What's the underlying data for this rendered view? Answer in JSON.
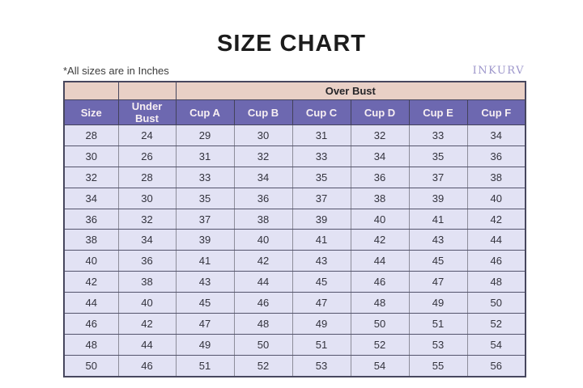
{
  "page": {
    "title": "SIZE CHART",
    "note": "*All sizes are in Inches",
    "brand": "INKURV"
  },
  "chart_data": {
    "type": "table",
    "title": "SIZE CHART",
    "units": "Inches",
    "note": "*All sizes are in Inches",
    "over_bust_label": "Over Bust",
    "columns": [
      "Size",
      "Under Bust",
      "Cup A",
      "Cup B",
      "Cup C",
      "Cup D",
      "Cup E",
      "Cup F"
    ],
    "over_bust_spans_columns": [
      "Cup A",
      "Cup B",
      "Cup C",
      "Cup D",
      "Cup E",
      "Cup F"
    ],
    "rows": [
      [
        28,
        24,
        29,
        30,
        31,
        32,
        33,
        34
      ],
      [
        30,
        26,
        31,
        32,
        33,
        34,
        35,
        36
      ],
      [
        32,
        28,
        33,
        34,
        35,
        36,
        37,
        38
      ],
      [
        34,
        30,
        35,
        36,
        37,
        38,
        39,
        40
      ],
      [
        36,
        32,
        37,
        38,
        39,
        40,
        41,
        42
      ],
      [
        38,
        34,
        39,
        40,
        41,
        42,
        43,
        44
      ],
      [
        40,
        36,
        41,
        42,
        43,
        44,
        45,
        46
      ],
      [
        42,
        38,
        43,
        44,
        45,
        46,
        47,
        48
      ],
      [
        44,
        40,
        45,
        46,
        47,
        48,
        49,
        50
      ],
      [
        46,
        42,
        47,
        48,
        49,
        50,
        51,
        52
      ],
      [
        48,
        44,
        49,
        50,
        51,
        52,
        53,
        54
      ],
      [
        50,
        46,
        51,
        52,
        53,
        54,
        55,
        56
      ]
    ]
  },
  "colors": {
    "header_purple": "#6d68b0",
    "header_pink": "#e9d0c6",
    "row_lavender": "#e2e2f4",
    "border_dark": "#47475e",
    "border_light": "#8d8d9a",
    "brand_purple": "#9d96cb",
    "title_text": "#1c1c1c",
    "header_text": "#f7eff2",
    "cell_text": "#33333d"
  }
}
